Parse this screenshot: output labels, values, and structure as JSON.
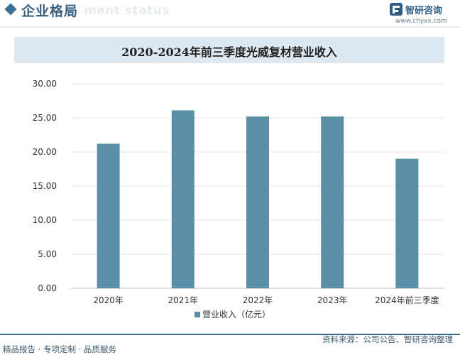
{
  "header": {
    "section_title": "企业格局",
    "section_watermark": "ment status",
    "brand_name": "智研咨询",
    "brand_url": "www.chyxx.com"
  },
  "colors": {
    "bar": "#5b8fa8",
    "accent": "#3c6f93",
    "title_band": "#dde8f0"
  },
  "chart_data": {
    "type": "bar",
    "title": "2020-2024年前三季度光威复材营业收入",
    "categories": [
      "2020年",
      "2021年",
      "2022年",
      "2023年",
      "2024年前三季度"
    ],
    "series": [
      {
        "name": "营业收入（亿元）",
        "values": [
          21.2,
          26.1,
          25.2,
          25.2,
          19.0
        ]
      }
    ],
    "ylim": [
      0,
      30
    ],
    "yticks": [
      "0.00",
      "5.00",
      "10.00",
      "15.00",
      "20.00",
      "25.00",
      "30.00"
    ],
    "grid": true,
    "legend": "bottom"
  },
  "footer": {
    "source": "资料来源：公司公告、智研咨询整理",
    "tagline": "精品报告 · 专项定制 · 品质服务"
  }
}
